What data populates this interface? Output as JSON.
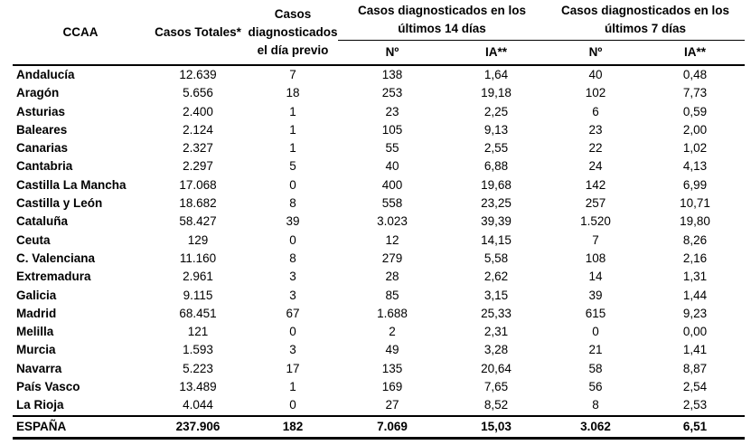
{
  "headers": {
    "ccaa": "CCAA",
    "casos_totales": "Casos Totales*",
    "casos_dia_previo": "Casos diagnosticados el día previo",
    "group_14": "Casos diagnosticados en los últimos 14 días",
    "group_7": "Casos diagnosticados en los últimos 7 días",
    "n": "Nº",
    "ia": "IA**"
  },
  "rows": [
    {
      "name": "Andalucía",
      "total": "12.639",
      "prev": "7",
      "n14": "138",
      "ia14": "1,64",
      "n7": "40",
      "ia7": "0,48"
    },
    {
      "name": "Aragón",
      "total": "5.656",
      "prev": "18",
      "n14": "253",
      "ia14": "19,18",
      "n7": "102",
      "ia7": "7,73"
    },
    {
      "name": "Asturias",
      "total": "2.400",
      "prev": "1",
      "n14": "23",
      "ia14": "2,25",
      "n7": "6",
      "ia7": "0,59"
    },
    {
      "name": "Baleares",
      "total": "2.124",
      "prev": "1",
      "n14": "105",
      "ia14": "9,13",
      "n7": "23",
      "ia7": "2,00"
    },
    {
      "name": "Canarias",
      "total": "2.327",
      "prev": "1",
      "n14": "55",
      "ia14": "2,55",
      "n7": "22",
      "ia7": "1,02"
    },
    {
      "name": "Cantabria",
      "total": "2.297",
      "prev": "5",
      "n14": "40",
      "ia14": "6,88",
      "n7": "24",
      "ia7": "4,13"
    },
    {
      "name": "Castilla La Mancha",
      "total": "17.068",
      "prev": "0",
      "n14": "400",
      "ia14": "19,68",
      "n7": "142",
      "ia7": "6,99"
    },
    {
      "name": "Castilla y León",
      "total": "18.682",
      "prev": "8",
      "n14": "558",
      "ia14": "23,25",
      "n7": "257",
      "ia7": "10,71"
    },
    {
      "name": "Cataluña",
      "total": "58.427",
      "prev": "39",
      "n14": "3.023",
      "ia14": "39,39",
      "n7": "1.520",
      "ia7": "19,80"
    },
    {
      "name": "Ceuta",
      "total": "129",
      "prev": "0",
      "n14": "12",
      "ia14": "14,15",
      "n7": "7",
      "ia7": "8,26"
    },
    {
      "name": "C. Valenciana",
      "total": "11.160",
      "prev": "8",
      "n14": "279",
      "ia14": "5,58",
      "n7": "108",
      "ia7": "2,16"
    },
    {
      "name": "Extremadura",
      "total": "2.961",
      "prev": "3",
      "n14": "28",
      "ia14": "2,62",
      "n7": "14",
      "ia7": "1,31"
    },
    {
      "name": "Galicia",
      "total": "9.115",
      "prev": "3",
      "n14": "85",
      "ia14": "3,15",
      "n7": "39",
      "ia7": "1,44"
    },
    {
      "name": "Madrid",
      "total": "68.451",
      "prev": "67",
      "n14": "1.688",
      "ia14": "25,33",
      "n7": "615",
      "ia7": "9,23"
    },
    {
      "name": "Melilla",
      "total": "121",
      "prev": "0",
      "n14": "2",
      "ia14": "2,31",
      "n7": "0",
      "ia7": "0,00"
    },
    {
      "name": "Murcia",
      "total": "1.593",
      "prev": "3",
      "n14": "49",
      "ia14": "3,28",
      "n7": "21",
      "ia7": "1,41"
    },
    {
      "name": "Navarra",
      "total": "5.223",
      "prev": "17",
      "n14": "135",
      "ia14": "20,64",
      "n7": "58",
      "ia7": "8,87"
    },
    {
      "name": "País Vasco",
      "total": "13.489",
      "prev": "1",
      "n14": "169",
      "ia14": "7,65",
      "n7": "56",
      "ia7": "2,54"
    },
    {
      "name": "La Rioja",
      "total": "4.044",
      "prev": "0",
      "n14": "27",
      "ia14": "8,52",
      "n7": "8",
      "ia7": "2,53"
    }
  ],
  "total": {
    "name": "ESPAÑA",
    "total": "237.906",
    "prev": "182",
    "n14": "7.069",
    "ia14": "15,03",
    "n7": "3.062",
    "ia7": "6,51"
  }
}
